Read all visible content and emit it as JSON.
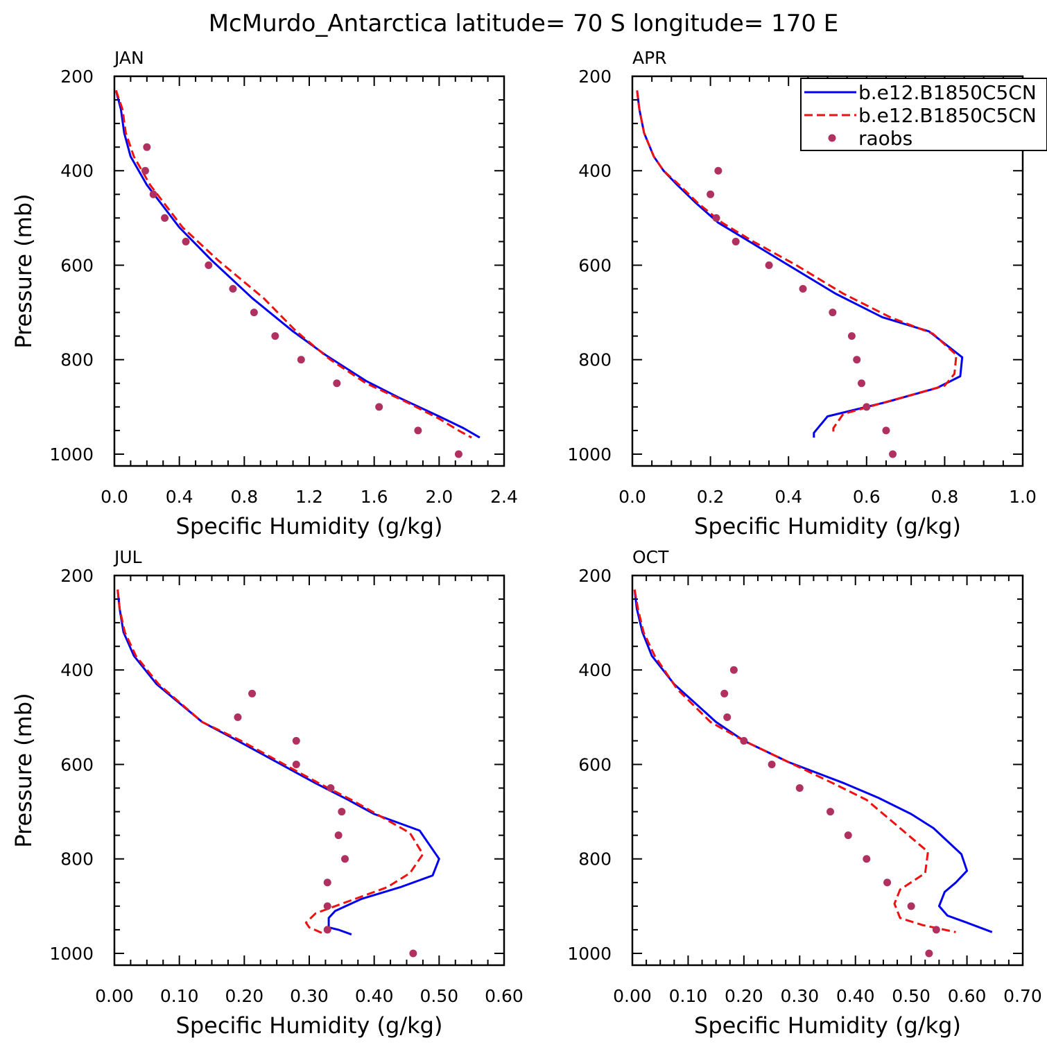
{
  "title": "McMurdo_Antarctica  latitude= 70 S longitude= 170 E",
  "colors": {
    "series_solid": "#0000ee",
    "series_dashed": "#ee1111",
    "raobs": "#b03060"
  },
  "legend": {
    "placement": "top-right of APR panel",
    "entries": [
      {
        "label": "b.e12.B1850C5CN",
        "style": "solid-line"
      },
      {
        "label": "b.e12.B1850C5CN",
        "style": "dashed-line"
      },
      {
        "label": "raobs",
        "style": "dot"
      }
    ]
  },
  "chart_data": [
    {
      "type": "line",
      "panel": "JAN",
      "xlabel": "Specific Humidity (g/kg)",
      "ylabel": "Pressure (mb)",
      "xlim": [
        0,
        2.4
      ],
      "ylim": [
        200,
        1025
      ],
      "y_inverted": true,
      "xticks": [
        "0.0",
        "0.4",
        "0.8",
        "1.2",
        "1.6",
        "2.0",
        "2.4"
      ],
      "xtick_values": [
        0,
        0.4,
        0.8,
        1.2,
        1.6,
        2.0,
        2.4
      ],
      "yticks": [
        "200",
        "400",
        "600",
        "800",
        "1000"
      ],
      "ytick_values": [
        200,
        400,
        600,
        800,
        1000
      ],
      "series": [
        {
          "style": "solid",
          "points": [
            [
              0.01,
              230
            ],
            [
              0.04,
              270
            ],
            [
              0.06,
              320
            ],
            [
              0.1,
              370
            ],
            [
              0.2,
              430
            ],
            [
              0.4,
              520
            ],
            [
              0.6,
              590
            ],
            [
              0.85,
              670
            ],
            [
              1.1,
              740
            ],
            [
              1.3,
              790
            ],
            [
              1.55,
              845
            ],
            [
              1.75,
              880
            ],
            [
              2.0,
              920
            ],
            [
              2.15,
              945
            ],
            [
              2.25,
              965
            ]
          ]
        },
        {
          "style": "dashed",
          "points": [
            [
              0.01,
              230
            ],
            [
              0.05,
              270
            ],
            [
              0.07,
              320
            ],
            [
              0.12,
              370
            ],
            [
              0.22,
              430
            ],
            [
              0.42,
              520
            ],
            [
              0.64,
              590
            ],
            [
              0.92,
              670
            ],
            [
              1.12,
              740
            ],
            [
              1.33,
              800
            ],
            [
              1.55,
              850
            ],
            [
              1.8,
              890
            ],
            [
              2.0,
              925
            ],
            [
              2.12,
              950
            ],
            [
              2.2,
              965
            ]
          ]
        },
        {
          "style": "dots",
          "points": [
            [
              0.2,
              350
            ],
            [
              0.19,
              400
            ],
            [
              0.24,
              450
            ],
            [
              0.31,
              500
            ],
            [
              0.44,
              550
            ],
            [
              0.58,
              600
            ],
            [
              0.73,
              650
            ],
            [
              0.86,
              700
            ],
            [
              0.99,
              750
            ],
            [
              1.15,
              800
            ],
            [
              1.37,
              850
            ],
            [
              1.63,
              900
            ],
            [
              1.87,
              950
            ],
            [
              2.12,
              1000
            ]
          ]
        }
      ]
    },
    {
      "type": "line",
      "panel": "APR",
      "xlabel": "Specific Humidity (g/kg)",
      "ylabel": "",
      "xlim": [
        0,
        1.0
      ],
      "ylim": [
        200,
        1025
      ],
      "y_inverted": true,
      "xticks": [
        "0.0",
        "0.2",
        "0.4",
        "0.6",
        "0.8",
        "1.0"
      ],
      "xtick_values": [
        0,
        0.2,
        0.4,
        0.6,
        0.8,
        1.0
      ],
      "yticks": [
        "200",
        "400",
        "600",
        "800",
        "1000"
      ],
      "ytick_values": [
        200,
        400,
        600,
        800,
        1000
      ],
      "series": [
        {
          "style": "solid",
          "points": [
            [
              0.012,
              230
            ],
            [
              0.018,
              270
            ],
            [
              0.03,
              320
            ],
            [
              0.055,
              370
            ],
            [
              0.08,
              400
            ],
            [
              0.115,
              430
            ],
            [
              0.165,
              470
            ],
            [
              0.22,
              510
            ],
            [
              0.3,
              550
            ],
            [
              0.4,
              600
            ],
            [
              0.52,
              660
            ],
            [
              0.64,
              710
            ],
            [
              0.76,
              740
            ],
            [
              0.845,
              795
            ],
            [
              0.84,
              835
            ],
            [
              0.78,
              860
            ],
            [
              0.65,
              890
            ],
            [
              0.5,
              920
            ],
            [
              0.49,
              930
            ],
            [
              0.465,
              955
            ],
            [
              0.465,
              965
            ]
          ]
        },
        {
          "style": "dashed",
          "points": [
            [
              0.012,
              230
            ],
            [
              0.018,
              270
            ],
            [
              0.03,
              320
            ],
            [
              0.055,
              370
            ],
            [
              0.08,
              400
            ],
            [
              0.12,
              430
            ],
            [
              0.17,
              470
            ],
            [
              0.23,
              510
            ],
            [
              0.31,
              550
            ],
            [
              0.42,
              600
            ],
            [
              0.54,
              660
            ],
            [
              0.66,
              710
            ],
            [
              0.77,
              745
            ],
            [
              0.83,
              790
            ],
            [
              0.825,
              830
            ],
            [
              0.8,
              855
            ],
            [
              0.67,
              885
            ],
            [
              0.54,
              915
            ],
            [
              0.515,
              945
            ],
            [
              0.515,
              960
            ]
          ]
        },
        {
          "style": "dots",
          "points": [
            [
              0.22,
              400
            ],
            [
              0.2,
              450
            ],
            [
              0.215,
              500
            ],
            [
              0.265,
              550
            ],
            [
              0.35,
              600
            ],
            [
              0.437,
              650
            ],
            [
              0.513,
              700
            ],
            [
              0.562,
              750
            ],
            [
              0.575,
              800
            ],
            [
              0.587,
              850
            ],
            [
              0.6,
              900
            ],
            [
              0.65,
              950
            ],
            [
              0.667,
              1000
            ]
          ]
        }
      ]
    },
    {
      "type": "line",
      "panel": "JUL",
      "xlabel": "Specific Humidity (g/kg)",
      "ylabel": "Pressure (mb)",
      "xlim": [
        0,
        0.6
      ],
      "ylim": [
        200,
        1025
      ],
      "y_inverted": true,
      "xticks": [
        "0.00",
        "0.10",
        "0.20",
        "0.30",
        "0.40",
        "0.50",
        "0.60"
      ],
      "xtick_values": [
        0,
        0.1,
        0.2,
        0.3,
        0.4,
        0.5,
        0.6
      ],
      "yticks": [
        "200",
        "400",
        "600",
        "800",
        "1000"
      ],
      "ytick_values": [
        200,
        400,
        600,
        800,
        1000
      ],
      "series": [
        {
          "style": "solid",
          "points": [
            [
              0.005,
              230
            ],
            [
              0.008,
              270
            ],
            [
              0.014,
              320
            ],
            [
              0.03,
              370
            ],
            [
              0.065,
              430
            ],
            [
              0.135,
              510
            ],
            [
              0.19,
              550
            ],
            [
              0.25,
              595
            ],
            [
              0.31,
              640
            ],
            [
              0.36,
              675
            ],
            [
              0.4,
              705
            ],
            [
              0.47,
              740
            ],
            [
              0.5,
              800
            ],
            [
              0.49,
              835
            ],
            [
              0.44,
              860
            ],
            [
              0.38,
              885
            ],
            [
              0.34,
              910
            ],
            [
              0.33,
              925
            ],
            [
              0.33,
              945
            ],
            [
              0.345,
              950
            ],
            [
              0.365,
              960
            ]
          ]
        },
        {
          "style": "dashed",
          "points": [
            [
              0.005,
              230
            ],
            [
              0.008,
              270
            ],
            [
              0.016,
              320
            ],
            [
              0.033,
              370
            ],
            [
              0.068,
              430
            ],
            [
              0.135,
              510
            ],
            [
              0.195,
              550
            ],
            [
              0.255,
              595
            ],
            [
              0.315,
              640
            ],
            [
              0.365,
              675
            ],
            [
              0.41,
              710
            ],
            [
              0.455,
              745
            ],
            [
              0.475,
              790
            ],
            [
              0.455,
              830
            ],
            [
              0.42,
              860
            ],
            [
              0.36,
              890
            ],
            [
              0.31,
              915
            ],
            [
              0.295,
              935
            ],
            [
              0.3,
              945
            ],
            [
              0.325,
              960
            ]
          ]
        },
        {
          "style": "dots",
          "points": [
            [
              0.212,
              450
            ],
            [
              0.19,
              500
            ],
            [
              0.28,
              550
            ],
            [
              0.28,
              600
            ],
            [
              0.333,
              650
            ],
            [
              0.35,
              700
            ],
            [
              0.345,
              750
            ],
            [
              0.355,
              800
            ],
            [
              0.328,
              850
            ],
            [
              0.328,
              900
            ],
            [
              0.328,
              950
            ],
            [
              0.46,
              1000
            ]
          ]
        }
      ]
    },
    {
      "type": "line",
      "panel": "OCT",
      "xlabel": "Specific Humidity (g/kg)",
      "ylabel": "",
      "xlim": [
        0,
        0.7
      ],
      "ylim": [
        200,
        1025
      ],
      "y_inverted": true,
      "xticks": [
        "0.00",
        "0.10",
        "0.20",
        "0.30",
        "0.40",
        "0.50",
        "0.60",
        "0.70"
      ],
      "xtick_values": [
        0,
        0.1,
        0.2,
        0.3,
        0.4,
        0.5,
        0.6,
        0.7
      ],
      "yticks": [
        "200",
        "400",
        "600",
        "800",
        "1000"
      ],
      "ytick_values": [
        200,
        400,
        600,
        800,
        1000
      ],
      "series": [
        {
          "style": "solid",
          "points": [
            [
              0.004,
              230
            ],
            [
              0.008,
              270
            ],
            [
              0.018,
              320
            ],
            [
              0.035,
              370
            ],
            [
              0.075,
              430
            ],
            [
              0.15,
              510
            ],
            [
              0.2,
              550
            ],
            [
              0.28,
              595
            ],
            [
              0.38,
              640
            ],
            [
              0.44,
              670
            ],
            [
              0.5,
              705
            ],
            [
              0.54,
              735
            ],
            [
              0.59,
              790
            ],
            [
              0.6,
              825
            ],
            [
              0.58,
              850
            ],
            [
              0.56,
              870
            ],
            [
              0.55,
              900
            ],
            [
              0.565,
              920
            ],
            [
              0.6,
              935
            ],
            [
              0.645,
              955
            ]
          ]
        },
        {
          "style": "dashed",
          "points": [
            [
              0.004,
              230
            ],
            [
              0.01,
              270
            ],
            [
              0.02,
              320
            ],
            [
              0.04,
              370
            ],
            [
              0.08,
              440
            ],
            [
              0.14,
              510
            ],
            [
              0.2,
              550
            ],
            [
              0.28,
              595
            ],
            [
              0.36,
              640
            ],
            [
              0.42,
              675
            ],
            [
              0.48,
              735
            ],
            [
              0.53,
              785
            ],
            [
              0.525,
              830
            ],
            [
              0.48,
              865
            ],
            [
              0.47,
              895
            ],
            [
              0.48,
              925
            ],
            [
              0.52,
              940
            ],
            [
              0.58,
              955
            ]
          ]
        },
        {
          "style": "dots",
          "points": [
            [
              0.182,
              400
            ],
            [
              0.165,
              450
            ],
            [
              0.17,
              500
            ],
            [
              0.2,
              550
            ],
            [
              0.25,
              600
            ],
            [
              0.3,
              650
            ],
            [
              0.355,
              700
            ],
            [
              0.387,
              750
            ],
            [
              0.42,
              800
            ],
            [
              0.457,
              850
            ],
            [
              0.5,
              900
            ],
            [
              0.545,
              950
            ],
            [
              0.532,
              1000
            ]
          ]
        }
      ]
    }
  ]
}
